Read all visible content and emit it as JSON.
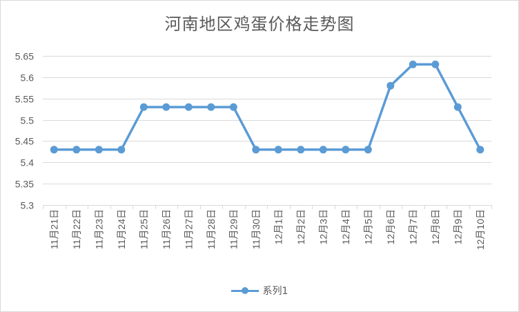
{
  "chart_data": {
    "type": "line",
    "title": "河南地区鸡蛋价格走势图",
    "categories": [
      "11月21日",
      "11月22日",
      "11月23日",
      "11月24日",
      "11月25日",
      "11月26日",
      "11月27日",
      "11月28日",
      "11月29日",
      "11月30日",
      "12月1日",
      "12月2日",
      "12月3日",
      "12月4日",
      "12月5日",
      "12月6日",
      "12月7日",
      "12月8日",
      "12月9日",
      "12月10日"
    ],
    "series": [
      {
        "name": "系列1",
        "values": [
          5.43,
          5.43,
          5.43,
          5.43,
          5.53,
          5.53,
          5.53,
          5.53,
          5.53,
          5.43,
          5.43,
          5.43,
          5.43,
          5.43,
          5.43,
          5.58,
          5.63,
          5.63,
          5.53,
          5.43
        ]
      }
    ],
    "y_ticks": [
      "5.65",
      "5.6",
      "5.55",
      "5.5",
      "5.45",
      "5.4",
      "5.35",
      "5.3"
    ],
    "ylim": [
      5.3,
      5.65
    ],
    "grid": true,
    "legend": "bottom",
    "colors": {
      "series": "#5b9bd5",
      "grid": "#d9d9d9",
      "text": "#595959"
    }
  }
}
